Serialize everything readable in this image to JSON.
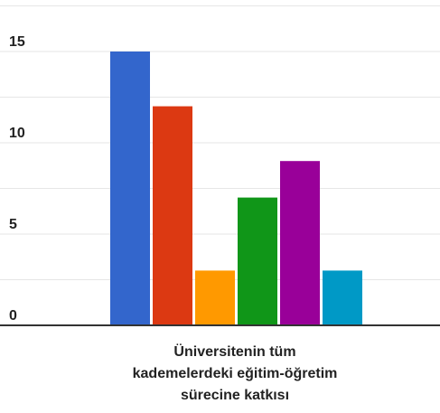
{
  "chart_data": {
    "type": "bar",
    "title": "",
    "xlabel": "Üniversitenin tüm kademelerdeki eğitim-öğretim sürecine katkısı",
    "xlabel_lines": [
      "Üniversitenin tüm",
      "kademelerdeki eğitim-öğretim",
      "sürecine katkısı"
    ],
    "ylabel": "",
    "ylim": [
      0,
      17.5
    ],
    "yticks": [
      0,
      5,
      10,
      15
    ],
    "grid": true,
    "series": [
      {
        "value": 15,
        "color": "#3366cc"
      },
      {
        "value": 12,
        "color": "#dc3912"
      },
      {
        "value": 3,
        "color": "#ff9900"
      },
      {
        "value": 7,
        "color": "#109618"
      },
      {
        "value": 9,
        "color": "#990099"
      },
      {
        "value": 3,
        "color": "#0099c6"
      }
    ]
  },
  "colors": {
    "gridline": "#e6e6e6",
    "axis": "#333333"
  }
}
